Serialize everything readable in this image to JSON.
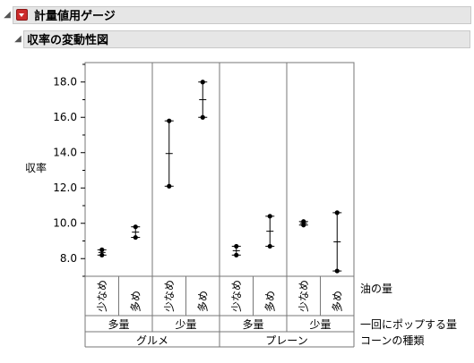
{
  "outline": {
    "main_title": "計量値用ゲージ",
    "sub_title": "収率の変動性図"
  },
  "chart_data": {
    "type": "variability",
    "title": "収率の変動性図",
    "ylabel": "収率",
    "ylim": [
      7.0,
      19.1
    ],
    "yticks": [
      "8.0",
      "10.0",
      "12.0",
      "14.0",
      "16.0",
      "18.0"
    ],
    "grid": false,
    "x_levels": {
      "oil": {
        "name": "油の量",
        "labels": [
          "少なめ",
          "多め",
          "少なめ",
          "多め",
          "少なめ",
          "多め",
          "少なめ",
          "多め"
        ]
      },
      "popcorn": {
        "name": "一回にポップする量",
        "labels": [
          "多量",
          "少量",
          "多量",
          "少量"
        ]
      },
      "type": {
        "name": "コーンの種類",
        "labels": [
          "グルメ",
          "プレーン"
        ]
      }
    },
    "cells": [
      {
        "points": [
          8.2,
          8.5
        ],
        "mean": 8.35
      },
      {
        "points": [
          9.2,
          9.8
        ],
        "mean": 9.5
      },
      {
        "points": [
          12.1,
          15.8
        ],
        "mean": 13.95
      },
      {
        "points": [
          16.0,
          18.0
        ],
        "mean": 17.0
      },
      {
        "points": [
          8.2,
          8.7
        ],
        "mean": 8.45
      },
      {
        "points": [
          8.7,
          10.4
        ],
        "mean": 9.55
      },
      {
        "points": [
          9.9,
          10.1
        ],
        "mean": 10.0
      },
      {
        "points": [
          7.3,
          10.6
        ],
        "mean": 8.95
      }
    ]
  }
}
